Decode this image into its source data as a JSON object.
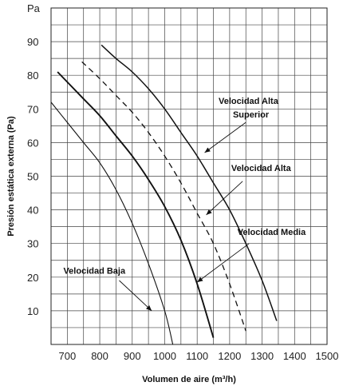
{
  "chart_data": {
    "type": "line",
    "title": "",
    "xlabel": "Volumen de aire (m³/h)",
    "ylabel": "Presión estática externa (Pa)",
    "y_unit_label": "Pa",
    "xlim": [
      650,
      1500
    ],
    "ylim": [
      0,
      100
    ],
    "x_ticks": [
      700,
      800,
      900,
      1000,
      1100,
      1200,
      1300,
      1400,
      1500
    ],
    "y_ticks": [
      10,
      20,
      30,
      40,
      50,
      60,
      70,
      80,
      90
    ],
    "x_minor_step": 50,
    "y_minor_step": 5,
    "grid": true,
    "series": [
      {
        "name": "Velocidad Baja",
        "style": "thin-solid",
        "x": [
          650,
          700,
          750,
          800,
          850,
          900,
          950,
          1000,
          1025
        ],
        "y": [
          72,
          66,
          60,
          54,
          46,
          36,
          24,
          10,
          0
        ]
      },
      {
        "name": "Velocidad Media",
        "style": "bold-solid",
        "x": [
          670,
          700,
          750,
          800,
          850,
          900,
          950,
          1000,
          1050,
          1100,
          1150
        ],
        "y": [
          81,
          78,
          73,
          68,
          62,
          56,
          49,
          41,
          31,
          18,
          2
        ]
      },
      {
        "name": "Velocidad Alta",
        "style": "dashed",
        "x": [
          745,
          800,
          850,
          900,
          950,
          1000,
          1050,
          1100,
          1150,
          1200,
          1250
        ],
        "y": [
          84,
          79,
          74,
          69,
          63,
          56,
          48,
          39,
          30,
          18,
          4
        ]
      },
      {
        "name": "Velocidad Alta Superior",
        "style": "solid",
        "x": [
          805,
          850,
          900,
          950,
          1000,
          1050,
          1100,
          1150,
          1200,
          1250,
          1300,
          1345
        ],
        "y": [
          89,
          85,
          81,
          76,
          70,
          63,
          56,
          48,
          40,
          30,
          19,
          7
        ]
      }
    ],
    "annotations": [
      {
        "label": "Velocidad Baja",
        "text_x": 688,
        "text_y": 21,
        "arrow_from": [
          860,
          19
        ],
        "arrow_to": [
          960,
          10
        ]
      },
      {
        "label": "Velocidad Media",
        "text_x": 1224,
        "text_y": 32.5,
        "arrow_from": [
          1260,
          30
        ],
        "arrow_to": [
          1100,
          18.5
        ]
      },
      {
        "label": "Velocidad Alta",
        "text_x": 1205,
        "text_y": 51.5,
        "arrow_from": [
          1240,
          48.5
        ],
        "arrow_to": [
          1128,
          38.5
        ]
      },
      {
        "label": "Velocidad Alta",
        "text_x": 1166,
        "text_y": 71.5,
        "arrow_from": null,
        "arrow_to": null
      },
      {
        "label": "Superior",
        "text_x": 1210,
        "text_y": 67.5,
        "arrow_from": [
          1250,
          66
        ],
        "arrow_to": [
          1123,
          57
        ]
      }
    ]
  },
  "colors": {
    "line": "#111111",
    "grid": "#444444",
    "background": "#ffffff"
  }
}
